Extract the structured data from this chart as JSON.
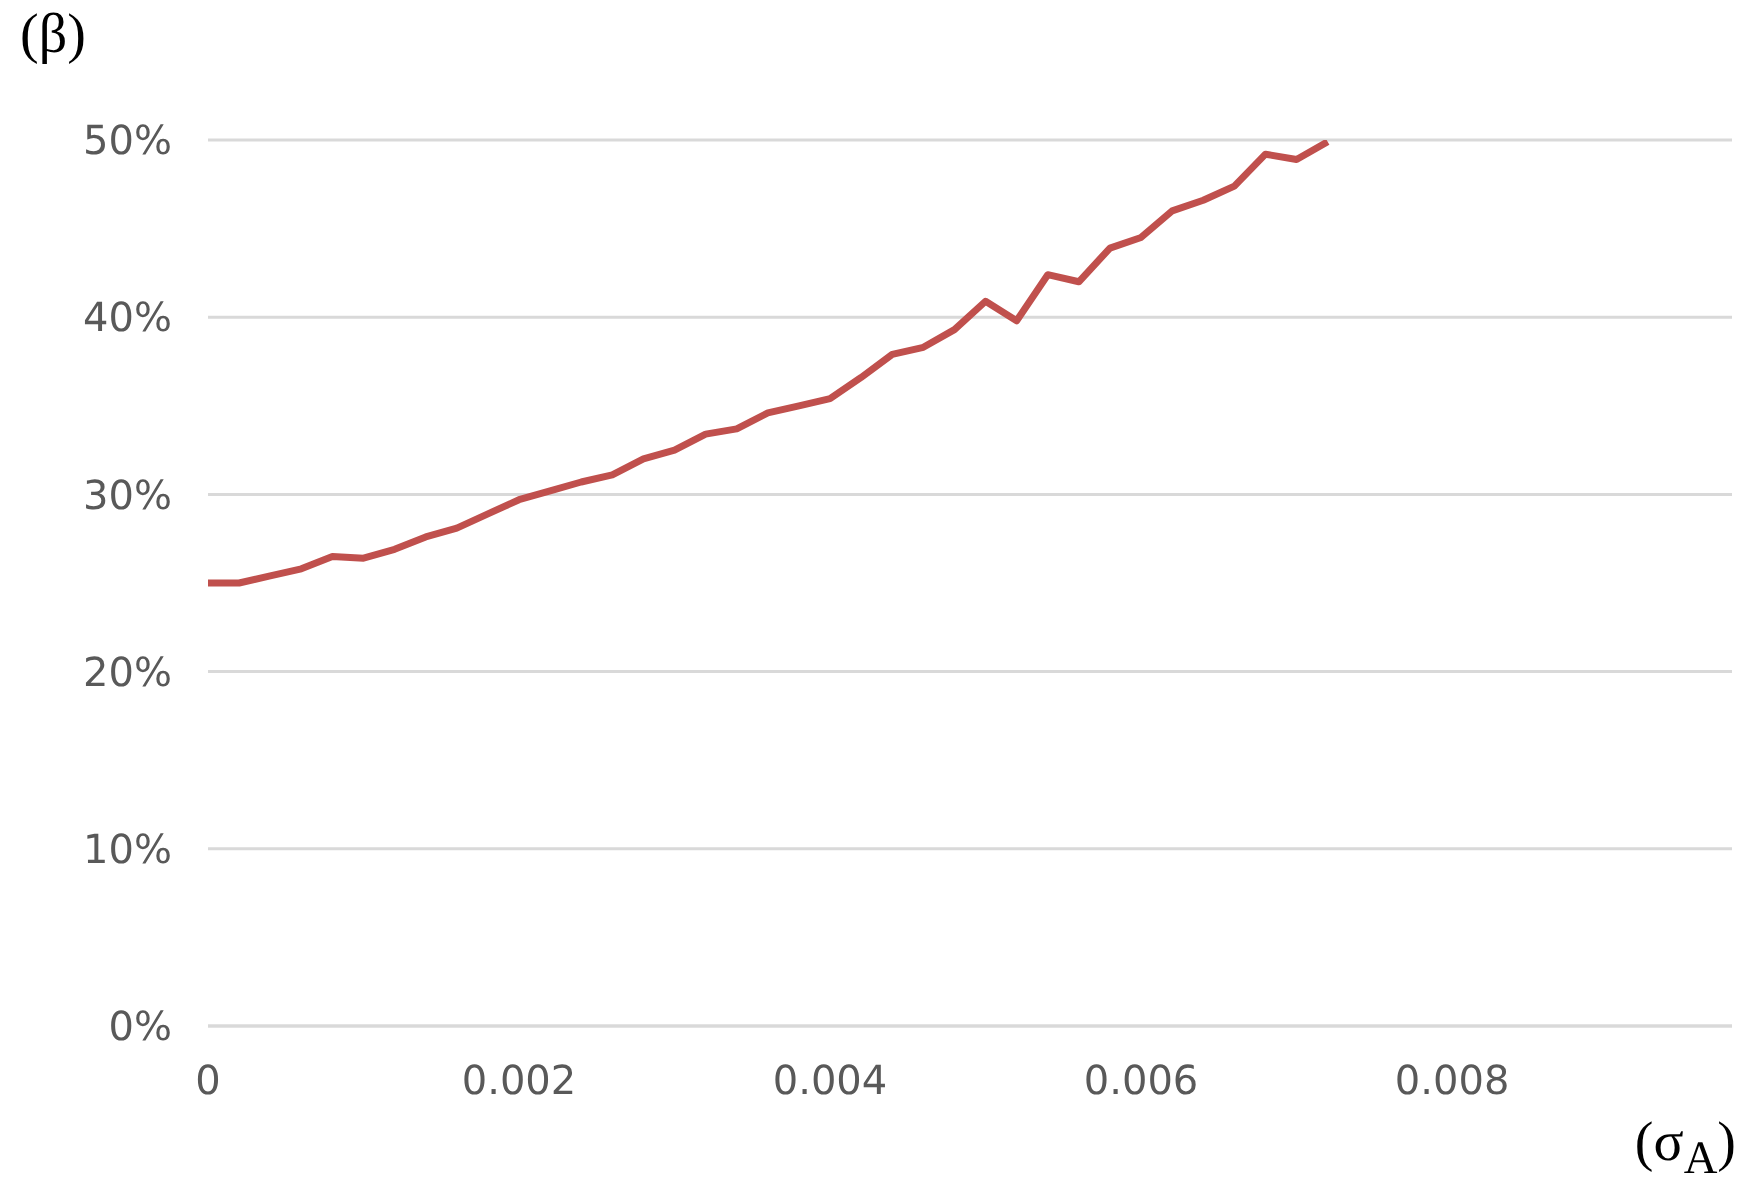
{
  "chart_data": {
    "type": "line",
    "xlabel": "(σ$_{A}$)",
    "ylabel": "(β)",
    "x": [
      0,
      0.0002,
      0.0004,
      0.0006,
      0.0008,
      0.001,
      0.0012,
      0.0014,
      0.0016,
      0.0018,
      0.002,
      0.0022,
      0.0024,
      0.0026,
      0.0028,
      0.003,
      0.0032,
      0.0034,
      0.0036,
      0.0038,
      0.004,
      0.0042,
      0.0044,
      0.0046,
      0.0048,
      0.005,
      0.0052,
      0.0054,
      0.0056,
      0.0058,
      0.006,
      0.0062,
      0.0064,
      0.0066,
      0.0068,
      0.007,
      0.0072
    ],
    "series": [
      {
        "color": "#c0504d",
        "values": [
          25.0,
          25.0,
          25.4,
          25.8,
          26.5,
          26.4,
          26.9,
          27.6,
          28.1,
          28.9,
          29.7,
          30.2,
          30.7,
          31.1,
          32.0,
          32.5,
          33.4,
          33.7,
          34.6,
          35.0,
          35.4,
          36.6,
          37.9,
          38.3,
          39.3,
          40.9,
          39.8,
          42.4,
          42.0,
          43.9,
          44.5,
          46.0,
          46.6,
          47.4,
          49.2,
          48.9,
          49.9
        ]
      }
    ],
    "xlim": [
      0,
      0.0098
    ],
    "xticks": [
      0,
      0.002,
      0.004,
      0.006,
      0.008
    ],
    "ylim": [
      0,
      50
    ],
    "yticks": [
      {
        "value": 0,
        "label": "0%"
      },
      {
        "value": 10,
        "label": "10%"
      },
      {
        "value": 20,
        "label": "20%"
      },
      {
        "value": 30,
        "label": "30%"
      },
      {
        "value": 40,
        "label": "40%"
      },
      {
        "value": 50,
        "label": "50%"
      }
    ],
    "grid": "y",
    "marker": "none",
    "line_style": "solid"
  }
}
